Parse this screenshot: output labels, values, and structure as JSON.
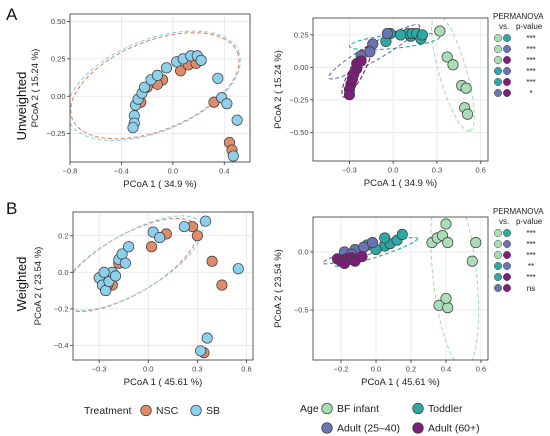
{
  "figure": {
    "panel_labels": [
      "A",
      "B"
    ],
    "row_labels": [
      "Unweighted",
      "Weighted"
    ],
    "permanova_header": [
      "PERMANOVA",
      "vs.",
      "p-value"
    ]
  },
  "colors": {
    "NSC": "#E08A68",
    "SB": "#8ED0EC",
    "BF infant": "#A9DDB5",
    "Toddler": "#2FA7A2",
    "Adult (25–40)": "#6A74B3",
    "Adult (60+)": "#7E1E7A"
  },
  "legends": {
    "treatment": {
      "title": "Treatment",
      "items": [
        "NSC",
        "SB"
      ]
    },
    "age": {
      "title": "Age",
      "items": [
        "BF infant",
        "Toddler",
        "Adult (25–40)",
        "Adult (60+)"
      ]
    }
  },
  "permanova": {
    "unweighted": [
      {
        "a": "BF infant",
        "b": "Toddler",
        "p": "***"
      },
      {
        "a": "BF infant",
        "b": "Adult (25–40)",
        "p": "***"
      },
      {
        "a": "BF infant",
        "b": "Adult (60+)",
        "p": "***"
      },
      {
        "a": "Toddler",
        "b": "Adult (25–40)",
        "p": "***"
      },
      {
        "a": "Toddler",
        "b": "Adult (60+)",
        "p": "***"
      },
      {
        "a": "Adult (25–40)",
        "b": "Adult (60+)",
        "p": "*"
      }
    ],
    "weighted": [
      {
        "a": "BF infant",
        "b": "Toddler",
        "p": "***"
      },
      {
        "a": "BF infant",
        "b": "Adult (25–40)",
        "p": "***"
      },
      {
        "a": "BF infant",
        "b": "Adult (60+)",
        "p": "***"
      },
      {
        "a": "Toddler",
        "b": "Adult (25–40)",
        "p": "**"
      },
      {
        "a": "Toddler",
        "b": "Adult (60+)",
        "p": "***"
      },
      {
        "a": "Adult (25–40)",
        "b": "Adult (60+)",
        "p": "ns"
      }
    ]
  },
  "chart_data": [
    {
      "type": "scatter",
      "xlabel": "PCoA 1 ( 34.9 %)",
      "ylabel": "PCoA 2 ( 15.24 %)",
      "xlim": [
        -0.8,
        0.6
      ],
      "ylim": [
        -0.44,
        0.55
      ],
      "xticks": [
        -0.8,
        -0.4,
        0.0,
        0.4
      ],
      "yticks": [
        -0.25,
        0.0,
        0.25,
        0.5
      ],
      "xtick_labels": [
        "−0.8",
        "−0.4",
        "0.0",
        "0.4"
      ],
      "ytick_labels": [
        "−0.25",
        "0.00",
        "0.25",
        "0.50"
      ],
      "grid": true,
      "ellipses": [
        {
          "group": "NSC",
          "cx": -0.14,
          "cy": 0.07,
          "rx": 0.64,
          "ry": 0.32,
          "angle": 22
        },
        {
          "group": "SB",
          "cx": -0.15,
          "cy": 0.07,
          "rx": 0.66,
          "ry": 0.33,
          "angle": 22
        }
      ],
      "series": [
        {
          "name": "NSC",
          "points": [
            [
              -0.08,
              0.11
            ],
            [
              -0.12,
              0.08
            ],
            [
              0.06,
              0.17
            ],
            [
              0.12,
              0.21
            ],
            [
              0.18,
              0.22
            ],
            [
              -0.2,
              0.06
            ],
            [
              -0.25,
              -0.04
            ],
            [
              0.32,
              -0.04
            ],
            [
              0.44,
              -0.31
            ],
            [
              0.46,
              -0.36
            ]
          ]
        },
        {
          "name": "SB",
          "points": [
            [
              -0.3,
              -0.13
            ],
            [
              -0.3,
              -0.18
            ],
            [
              -0.31,
              -0.21
            ],
            [
              -0.29,
              -0.06
            ],
            [
              -0.27,
              -0.02
            ],
            [
              -0.24,
              0.02
            ],
            [
              -0.22,
              0.06
            ],
            [
              -0.17,
              0.11
            ],
            [
              -0.12,
              0.14
            ],
            [
              -0.05,
              0.19
            ],
            [
              0.03,
              0.23
            ],
            [
              0.08,
              0.25
            ],
            [
              0.14,
              0.27
            ],
            [
              0.19,
              0.27
            ],
            [
              0.22,
              0.24
            ],
            [
              0.35,
              0.12
            ],
            [
              0.38,
              -0.01
            ],
            [
              0.42,
              -0.05
            ],
            [
              0.5,
              -0.16
            ],
            [
              0.47,
              -0.4
            ]
          ]
        }
      ]
    },
    {
      "type": "scatter",
      "xlabel": "PCoA 1 ( 34.9 %)",
      "ylabel": "PCoA 2 ( 15.24 %)",
      "xlim": [
        -0.55,
        0.65
      ],
      "ylim": [
        -0.72,
        0.38
      ],
      "xticks": [
        -0.3,
        0.0,
        0.3,
        0.6
      ],
      "yticks": [
        -0.5,
        -0.25,
        0.0,
        0.25
      ],
      "xtick_labels": [
        "−0.3",
        "0.0",
        "0.3",
        "0.6"
      ],
      "ytick_labels": [
        "−0.50",
        "−0.25",
        "0.00",
        "0.25"
      ],
      "grid": true,
      "ellipses": [
        {
          "group": "BF infant",
          "cx": 0.41,
          "cy": -0.04,
          "rx": 0.44,
          "ry": 0.1,
          "angle": -74
        },
        {
          "group": "Toddler",
          "cx": 0.01,
          "cy": 0.2,
          "rx": 0.33,
          "ry": 0.05,
          "angle": 6
        },
        {
          "group": "Adult (25–40)",
          "cx": -0.13,
          "cy": 0.12,
          "rx": 0.38,
          "ry": 0.06,
          "angle": 30
        },
        {
          "group": "Adult (60+)",
          "cx": -0.25,
          "cy": -0.03,
          "rx": 0.21,
          "ry": 0.05,
          "angle": 62
        }
      ],
      "series": [
        {
          "name": "BF infant",
          "points": [
            [
              0.37,
              0.08
            ],
            [
              0.41,
              0.02
            ],
            [
              0.47,
              -0.14
            ],
            [
              0.5,
              -0.16
            ],
            [
              0.49,
              -0.31
            ],
            [
              0.51,
              -0.36
            ],
            [
              0.32,
              0.28
            ]
          ]
        },
        {
          "name": "Toddler",
          "points": [
            [
              0.12,
              0.24
            ],
            [
              0.1,
              0.26
            ],
            [
              0.13,
              0.26
            ],
            [
              0.16,
              0.26
            ],
            [
              0.19,
              0.22
            ],
            [
              0.05,
              0.25
            ],
            [
              -0.05,
              0.2
            ],
            [
              -0.02,
              0.26
            ],
            [
              0.2,
              0.25
            ]
          ]
        },
        {
          "name": "Adult (25–40)",
          "points": [
            [
              -0.22,
              0.09
            ],
            [
              -0.14,
              0.18
            ],
            [
              -0.04,
              0.26
            ],
            [
              -0.16,
              0.12
            ]
          ]
        },
        {
          "name": "Adult (60+)",
          "points": [
            [
              -0.29,
              -0.13
            ],
            [
              -0.3,
              -0.17
            ],
            [
              -0.28,
              -0.09
            ],
            [
              -0.27,
              -0.05
            ],
            [
              -0.25,
              -0.01
            ],
            [
              -0.25,
              0.03
            ],
            [
              -0.22,
              0.05
            ],
            [
              -0.3,
              -0.21
            ]
          ]
        }
      ]
    },
    {
      "type": "scatter",
      "xlabel": "PCoA 1 ( 45.61 %)",
      "ylabel": "PCoA 2 ( 23.54 %)",
      "xlim": [
        -0.46,
        0.64
      ],
      "ylim": [
        -0.48,
        0.33
      ],
      "xticks": [
        -0.3,
        0.0,
        0.3,
        0.6
      ],
      "yticks": [
        -0.4,
        -0.2,
        0.0,
        0.2
      ],
      "xtick_labels": [
        "−0.3",
        "0.0",
        "0.3",
        "0.6"
      ],
      "ytick_labels": [
        "−0.4",
        "−0.2",
        "0.0",
        "0.2"
      ],
      "grid": true,
      "ellipses": [
        {
          "group": "NSC",
          "cx": -0.12,
          "cy": 0.04,
          "rx": 0.45,
          "ry": 0.17,
          "angle": 30
        },
        {
          "group": "SB",
          "cx": -0.1,
          "cy": 0.05,
          "rx": 0.46,
          "ry": 0.17,
          "angle": 30
        }
      ],
      "series": [
        {
          "name": "NSC",
          "points": [
            [
              0.11,
              0.21
            ],
            [
              0.27,
              0.25
            ],
            [
              0.3,
              0.2
            ],
            [
              0.39,
              0.06
            ],
            [
              0.45,
              -0.07
            ],
            [
              -0.18,
              0.05
            ],
            [
              -0.22,
              -0.07
            ],
            [
              -0.25,
              -0.07
            ],
            [
              0.02,
              0.14
            ],
            [
              0.34,
              -0.44
            ]
          ]
        },
        {
          "name": "SB",
          "points": [
            [
              -0.3,
              -0.03
            ],
            [
              -0.28,
              -0.07
            ],
            [
              -0.26,
              -0.1
            ],
            [
              -0.24,
              -0.05
            ],
            [
              -0.22,
              0.0
            ],
            [
              -0.2,
              -0.02
            ],
            [
              -0.18,
              0.07
            ],
            [
              -0.16,
              0.1
            ],
            [
              -0.14,
              0.05
            ],
            [
              -0.12,
              0.14
            ],
            [
              0.03,
              0.22
            ],
            [
              0.07,
              0.19
            ],
            [
              0.22,
              0.25
            ],
            [
              0.35,
              0.28
            ],
            [
              0.36,
              -0.36
            ],
            [
              0.55,
              0.02
            ],
            [
              0.32,
              -0.43
            ],
            [
              -0.27,
              0.0
            ]
          ]
        }
      ]
    },
    {
      "type": "scatter",
      "xlabel": "PCoA 1 ( 45.61 %)",
      "ylabel": "PCoA 2 ( 23.54 %)",
      "xlim": [
        -0.36,
        0.64
      ],
      "ylim": [
        -0.93,
        0.3
      ],
      "xticks": [
        -0.2,
        0.0,
        0.2,
        0.4,
        0.6
      ],
      "yticks": [
        -0.5,
        0.0
      ],
      "xtick_labels": [
        "−0.2",
        "0.0",
        "0.2",
        "0.4",
        "0.6"
      ],
      "ytick_labels": [
        "−0.5",
        "0.0"
      ],
      "grid": true,
      "ellipses": [
        {
          "group": "BF infant",
          "cx": 0.45,
          "cy": -0.2,
          "rx": 0.64,
          "ry": 0.15,
          "angle": -84
        },
        {
          "group": "Toddler",
          "cx": 0.0,
          "cy": 0.0,
          "rx": 0.3,
          "ry": 0.035,
          "angle": 18
        },
        {
          "group": "Adult (25–40)",
          "cx": -0.08,
          "cy": 0.0,
          "rx": 0.28,
          "ry": 0.03,
          "angle": 16
        },
        {
          "group": "Adult (60+)",
          "cx": -0.15,
          "cy": -0.06,
          "rx": 0.11,
          "ry": 0.03,
          "angle": 8
        }
      ],
      "series": [
        {
          "name": "BF infant",
          "points": [
            [
              0.32,
              0.08
            ],
            [
              0.35,
              0.12
            ],
            [
              0.4,
              0.24
            ],
            [
              0.38,
              0.14
            ],
            [
              0.41,
              0.08
            ],
            [
              0.57,
              0.08
            ],
            [
              0.55,
              -0.08
            ],
            [
              0.36,
              -0.46
            ],
            [
              0.41,
              -0.48
            ],
            [
              0.4,
              -0.4
            ]
          ]
        },
        {
          "name": "Toddler",
          "points": [
            [
              0.05,
              0.05
            ],
            [
              0.08,
              0.07
            ],
            [
              0.12,
              0.1
            ],
            [
              0.15,
              0.15
            ],
            [
              -0.05,
              0.06
            ],
            [
              -0.1,
              0.0
            ],
            [
              0.0,
              0.02
            ],
            [
              0.05,
              0.12
            ]
          ]
        },
        {
          "name": "Adult (25–40)",
          "points": [
            [
              -0.18,
              0.0
            ],
            [
              -0.12,
              0.02
            ],
            [
              -0.07,
              0.04
            ],
            [
              -0.02,
              0.08
            ],
            [
              -0.14,
              -0.02
            ]
          ]
        },
        {
          "name": "Adult (60+)",
          "points": [
            [
              -0.22,
              -0.06
            ],
            [
              -0.2,
              -0.08
            ],
            [
              -0.17,
              -0.06
            ],
            [
              -0.14,
              -0.05
            ],
            [
              -0.12,
              -0.08
            ],
            [
              -0.08,
              -0.04
            ],
            [
              -0.18,
              -0.1
            ]
          ]
        }
      ]
    }
  ]
}
